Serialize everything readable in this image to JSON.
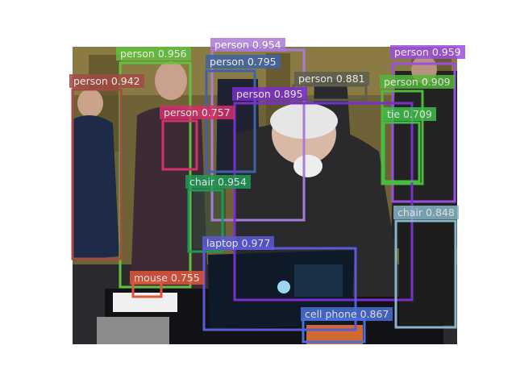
{
  "detections": [
    {
      "label": "person 0.956",
      "color": "#5fc23f"
    },
    {
      "label": "person 0.954",
      "color": "#a97bd8"
    },
    {
      "label": "person 0.959",
      "color": "#9b4fe0"
    },
    {
      "label": "person 0.795",
      "color": "#3f63a8"
    },
    {
      "label": "person 0.942",
      "color": "#a34a46"
    },
    {
      "label": "person 0.881",
      "color": "#5e5e4e"
    },
    {
      "label": "person 0.909",
      "color": "#52b83a"
    },
    {
      "label": "person 0.895",
      "color": "#7a2fcc"
    },
    {
      "label": "person 0.757",
      "color": "#d4306a"
    },
    {
      "label": "tie 0.709",
      "color": "#3fbf48"
    },
    {
      "label": "chair 0.954",
      "color": "#1f9a55"
    },
    {
      "label": "chair 0.848",
      "color": "#86b6c8"
    },
    {
      "label": "laptop 0.977",
      "color": "#5c5ad8"
    },
    {
      "label": "mouse 0.755",
      "color": "#e0563a"
    },
    {
      "label": "cell phone 0.867",
      "color": "#4a6fd8"
    }
  ],
  "photo": {
    "description_colors": {
      "wall": "#7a6a3a",
      "panel": "#5c4e2a",
      "dark": "#1a1a1f",
      "floor": "#3a3330"
    }
  }
}
